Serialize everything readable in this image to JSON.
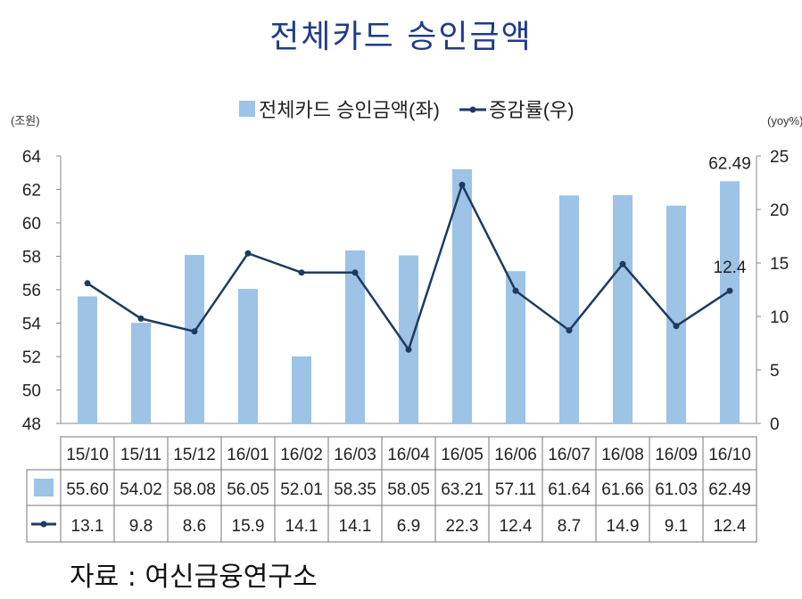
{
  "chart_data": {
    "type": "bar+line",
    "title": "전체카드 승인금액",
    "left_axis_unit": "(조원)",
    "right_axis_unit": "(yoy%)",
    "categories": [
      "15/10",
      "15/11",
      "15/12",
      "16/01",
      "16/02",
      "16/03",
      "16/04",
      "16/05",
      "16/06",
      "16/07",
      "16/08",
      "16/09",
      "16/10"
    ],
    "series": [
      {
        "name": "전체카드 승인금액(좌)",
        "type": "bar",
        "axis": "left",
        "color": "#9dc3e6",
        "values": [
          55.6,
          54.02,
          58.08,
          56.05,
          52.01,
          58.35,
          58.05,
          63.21,
          57.11,
          61.64,
          61.66,
          61.03,
          62.49
        ]
      },
      {
        "name": "증감률(우)",
        "type": "line",
        "axis": "right",
        "color": "#1f3a60",
        "values": [
          13.1,
          9.8,
          8.6,
          15.9,
          14.1,
          14.1,
          6.9,
          22.3,
          12.4,
          8.7,
          14.9,
          9.1,
          12.4
        ]
      }
    ],
    "left_ylim": [
      48,
      64
    ],
    "left_ticks": [
      "48",
      "50",
      "52",
      "54",
      "56",
      "58",
      "60",
      "62",
      "64"
    ],
    "right_ylim": [
      0,
      25
    ],
    "right_ticks": [
      "0",
      "5",
      "10",
      "15",
      "20",
      "25"
    ],
    "annotations": [
      {
        "text": "62.49",
        "series": 0,
        "index": 12
      },
      {
        "text": "12.4",
        "series": 1,
        "index": 12
      }
    ],
    "legend_placement": "top",
    "data_table": true,
    "grid": false
  },
  "source": "자료 : 여신금융연구소"
}
